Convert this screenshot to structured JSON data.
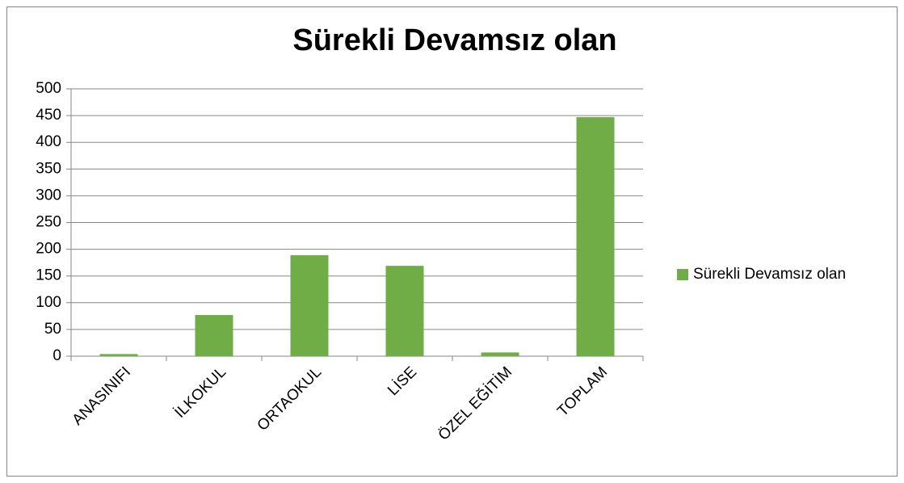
{
  "chart_data": {
    "type": "bar",
    "title": "Sürekli Devamsız olan",
    "categories": [
      "ANASINIFI",
      "İLKOKUL",
      "ORTAOKUL",
      "LİSE",
      "ÖZEL EĞİTİM",
      "TOPLAM"
    ],
    "series": [
      {
        "name": "Sürekli Devamsız olan",
        "color": "#70ad47",
        "values": [
          4,
          77,
          189,
          169,
          7,
          447
        ]
      }
    ],
    "ylim": [
      0,
      500
    ],
    "yticks": [
      0,
      50,
      100,
      150,
      200,
      250,
      300,
      350,
      400,
      450,
      500
    ],
    "grid": true,
    "legend": "right"
  }
}
